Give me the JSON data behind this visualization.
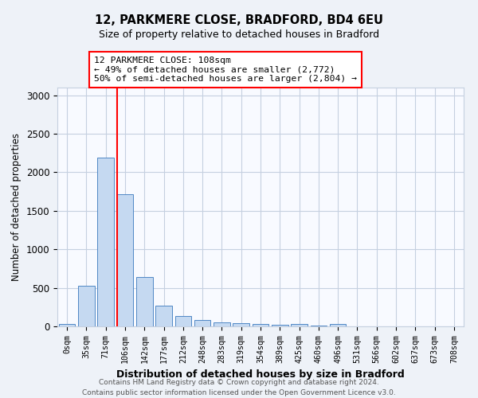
{
  "title1": "12, PARKMERE CLOSE, BRADFORD, BD4 6EU",
  "title2": "Size of property relative to detached houses in Bradford",
  "xlabel": "Distribution of detached houses by size in Bradford",
  "ylabel": "Number of detached properties",
  "bar_labels": [
    "0sqm",
    "35sqm",
    "71sqm",
    "106sqm",
    "142sqm",
    "177sqm",
    "212sqm",
    "248sqm",
    "283sqm",
    "319sqm",
    "354sqm",
    "389sqm",
    "425sqm",
    "460sqm",
    "496sqm",
    "531sqm",
    "566sqm",
    "602sqm",
    "637sqm",
    "673sqm",
    "708sqm"
  ],
  "bar_values": [
    35,
    530,
    2190,
    1720,
    640,
    270,
    130,
    80,
    55,
    40,
    28,
    18,
    35,
    12,
    30,
    0,
    0,
    0,
    0,
    0,
    0
  ],
  "bar_color": "#c5d9f1",
  "bar_edgecolor": "#4f87c5",
  "ylim": [
    0,
    3100
  ],
  "yticks": [
    0,
    500,
    1000,
    1500,
    2000,
    2500,
    3000
  ],
  "red_line_index": 3,
  "annotation_text": "12 PARKMERE CLOSE: 108sqm\n← 49% of detached houses are smaller (2,772)\n50% of semi-detached houses are larger (2,804) →",
  "footer1": "Contains HM Land Registry data © Crown copyright and database right 2024.",
  "footer2": "Contains public sector information licensed under the Open Government Licence v3.0.",
  "background_color": "#eef2f8",
  "plot_bg_color": "#f8faff",
  "grid_color": "#c5d0e0"
}
